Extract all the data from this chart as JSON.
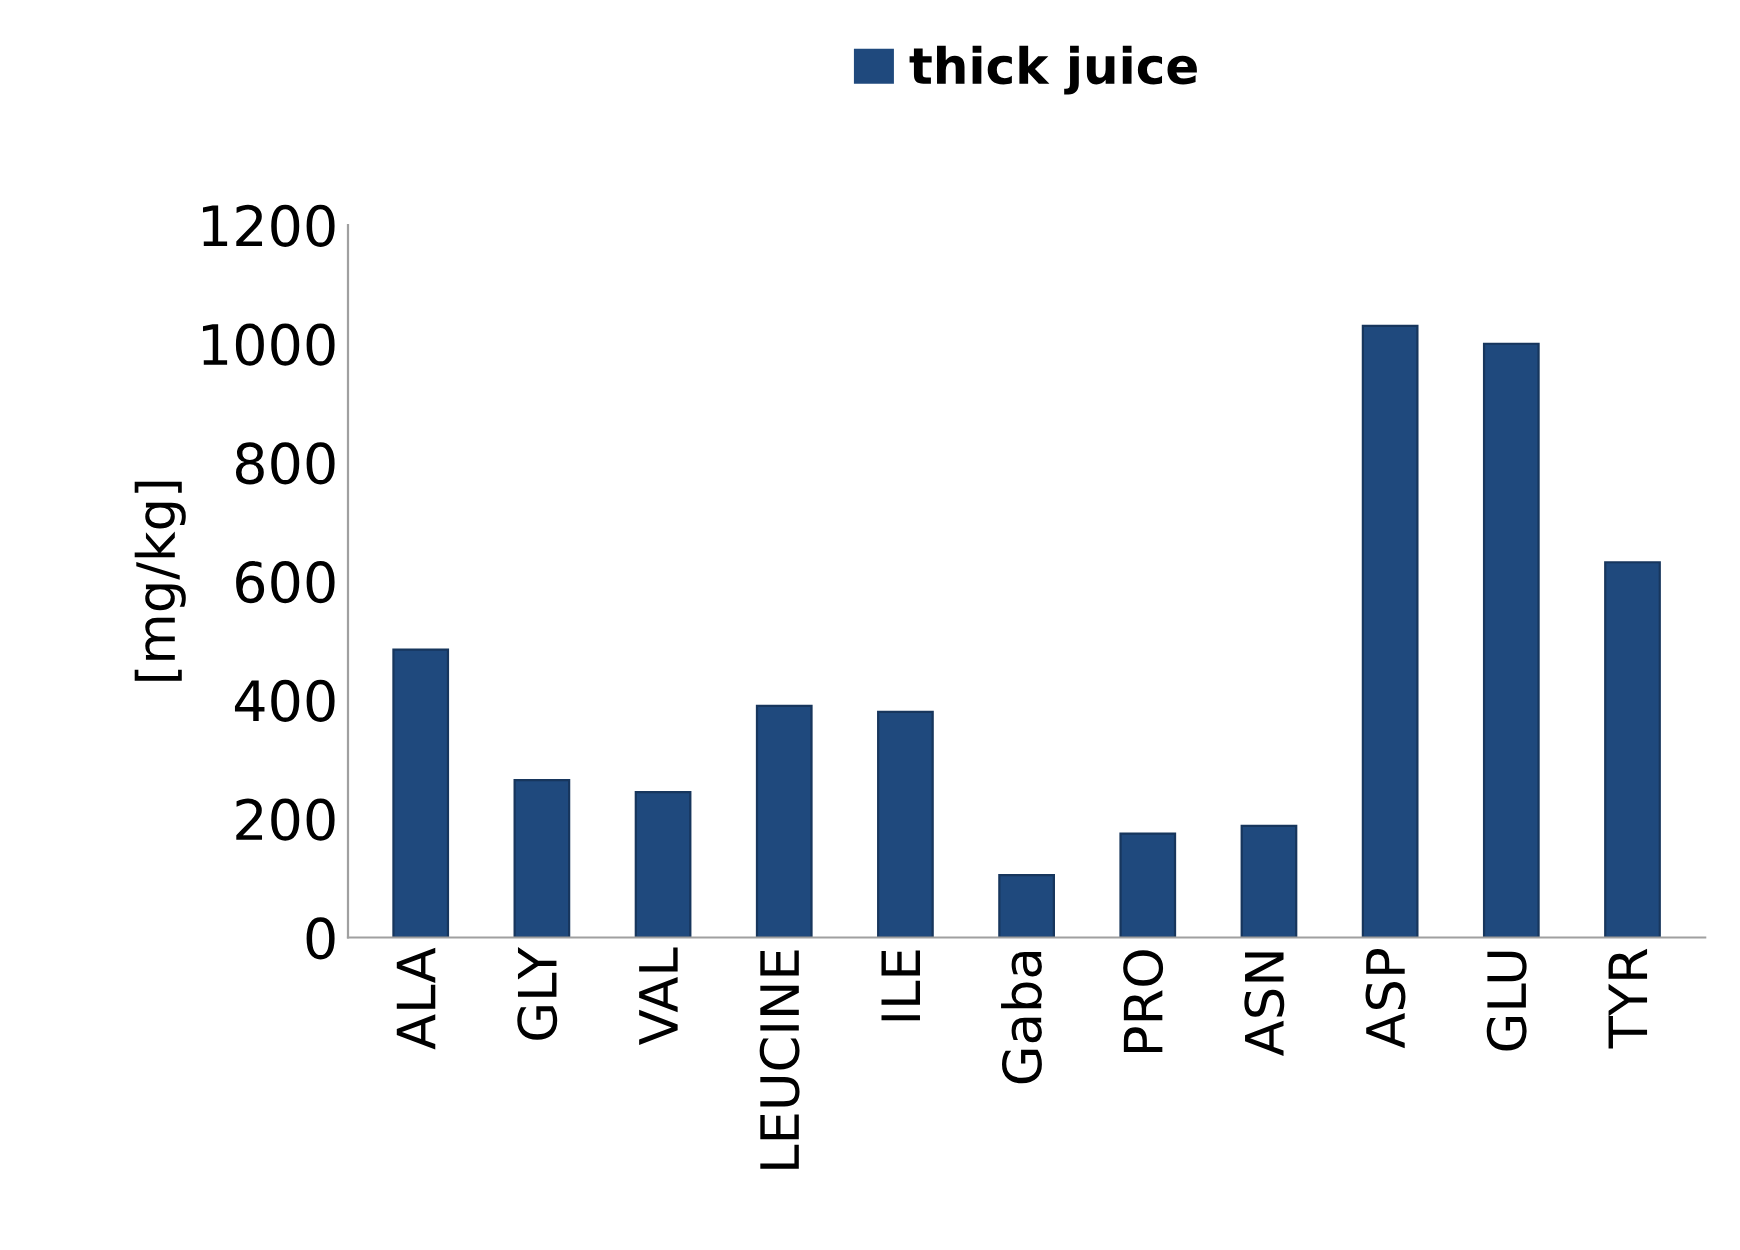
{
  "chart_data": {
    "type": "bar",
    "ylabel": "[mg/kg]",
    "categories": [
      "ALA",
      "GLY",
      "VAL",
      "LEUCINE",
      "ILE",
      "Gaba",
      "PRO",
      "ASN",
      "ASP",
      "GLU",
      "TYR"
    ],
    "series": [
      {
        "name": "thick juice",
        "color": "#1f497d",
        "values": [
          485,
          265,
          245,
          390,
          380,
          105,
          175,
          188,
          1030,
          1000,
          632
        ]
      }
    ],
    "ylim": [
      0,
      1200
    ],
    "yticks": [
      0,
      200,
      400,
      600,
      800,
      1000,
      1200
    ],
    "grid": false,
    "legend": "top"
  }
}
